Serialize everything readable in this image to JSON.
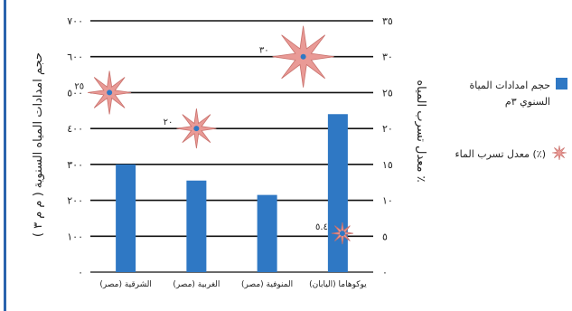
{
  "chart_data": {
    "type": "bar",
    "categories": [
      "الشرقية (مصر)",
      "الغربية (مصر)",
      "المنوفية (مصر)",
      "يوكوهاما (اليابان)"
    ],
    "series": [
      {
        "name": "حجم امدادات المياة السنوي ٣م",
        "type": "bar",
        "axis": "left",
        "values": [
          300,
          255,
          215,
          440
        ],
        "color": "#2f78c4"
      },
      {
        "name": "(٪) معدل تسرب الماء",
        "type": "scatter",
        "axis": "right",
        "marker": "star",
        "values": [
          25,
          20,
          30,
          5.4
        ],
        "data_labels": [
          "٢٥",
          "٢٠",
          "٣٠",
          "٥.٤"
        ],
        "color": "#e99a96"
      }
    ],
    "yaxis_left": {
      "label": "حجم امدادات المياه السنوية ( م م ٣ )",
      "ylim": [
        0,
        700
      ],
      "ticks": [
        "٠",
        "١٠٠",
        "٢٠٠",
        "٣٠٠",
        "٤٠٠",
        "٥٠٠",
        "٦٠٠",
        "٧٠٠"
      ]
    },
    "yaxis_right": {
      "label": "معدل تسرب المياه ٪",
      "ylim": [
        0,
        35
      ],
      "ticks": [
        "٠",
        "٥",
        "١٠",
        "١٥",
        "٢٠",
        "٢٥",
        "٣٠",
        "٣٥"
      ]
    },
    "grid": true,
    "legend_position": "right"
  },
  "legend": {
    "bars_label": "حجم امدادات المياة السنوي ٣م",
    "stars_label": "(٪) معدل تسرب الماء"
  },
  "colors": {
    "bar": "#2f78c4",
    "star": "#e99a96",
    "frame": "#2a63ad"
  }
}
